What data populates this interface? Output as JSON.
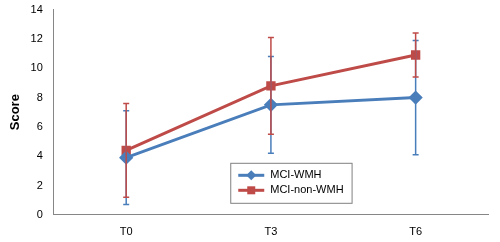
{
  "chart_data": {
    "type": "line",
    "categories": [
      "T0",
      "T3",
      "T6"
    ],
    "y_label": "Score",
    "ylim": [
      0,
      14
    ],
    "yticks": [
      0,
      2,
      4,
      6,
      8,
      10,
      12,
      14
    ],
    "grid": false,
    "legend": "bottom",
    "series": [
      {
        "name": "MCI-WMH",
        "color": "#4a7ebb",
        "marker": "diamond",
        "values": [
          3.9,
          7.5,
          8.0
        ],
        "errors": [
          3.2,
          3.3,
          3.9
        ]
      },
      {
        "name": "MCI-non-WMH",
        "color": "#be4b48",
        "marker": "square",
        "values": [
          4.4,
          8.8,
          10.9
        ],
        "errors": [
          3.2,
          3.3,
          1.5
        ]
      }
    ]
  }
}
